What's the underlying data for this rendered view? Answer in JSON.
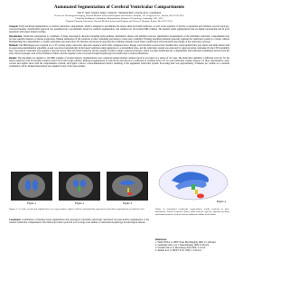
{
  "header": {
    "title": "Automated Segmentation of Cerebral Ventricular Compartments",
    "authors": "Wei Y. Yeh¹, Wenfei Jiang², Vamsi K. Yalamanchili¹, Charles R.G. Guttmann¹",
    "affiliations": [
      "¹Center for Neurological Imaging, Harvard Medical School and Brigham and Women's Hospital, 221 Longwood Ave., Boston, MA 02115 USA",
      "²Artificial Intelligence Laboratory, Massachusetts Institute of Technology, Cambridge, MA, USA",
      "³Surgical Planning Laboratory, Harvard Medical School and Brigham and Women's Hospital, Boston, MA 02115 USA"
    ]
  },
  "sections": [
    {
      "heading": "Synopsis:",
      "text": "Fully automated segmentation of cerebral ventricular compartments, which is designed to discriminate the lateral, third and fourth ventricles, as well as the aqueduct of Sylvius, is presented and validated. A novel topology-corrected intensity classification approach was assembled into a probabilistic model for ventricle segmentation, and validated on 124 normal MRI volumes. The method yields segmentations that are highly reproducible and in good agreement with expert manual tracings."
    },
    {
      "heading": "Introduction:",
      "text": "Ventricular enlargement is a hallmark of many neurological disorders including hydrocephalus, Alzheimer's disease and multiple sclerosis. Quantitative measurements of the individual ventricular compartments may provide sensitive markers of disease progression. Manual delineation of the ventricles is time consuming and subject to inter-rater variability. Existing automated methods generally segment the ventricular system as a whole, without distinguishing the compartments, or require substantial user interaction. We therefore developed an approach that combines intensity based tissue classification with anatomical knowledge of the ventricular topology."
    },
    {
      "heading": "Methods:",
      "text": "The MR images were acquired on a 1.5T scanner using a dual echo spin-echo sequence with 3 mm contiguous slices. Images were bias-field corrected and classified into cerebrospinal fluid, gray matter and white matter with an expectation-maximization algorithm. A seed was placed automatically in the lateral ventricles using registration to a probabilistic atlas, and the ventricular system was extracted by region growing constrained by the CSF probability map. Topological constraints were applied so that the lateral, third and fourth ventricles and the aqueduct formed a single connected structure, which was then subdivided into compartments with anatomical landmarks derived from the atlas. Narrow passages such as the foramina of Monro and the aqueduct were recovered through morphological reconstruction at reduced thresholds."
    },
    {
      "heading": "Results:",
      "text": "The algorithm was applied to 124 MRI volumes of normal subjects. Segmentations were compared against manual outlines traced by an expert on a subset of 20 cases. The mean Dice similarity coefficient was 0.91 for the lateral ventricles, 0.82 for the third ventricle and 0.79 for the fourth ventricle. Repeated segmentation of scan-rescan data showed a coefficient of variation below 2% for total ventricular volume. Figures 1-3 show representative axial, coronal and sagittal slices with the compartments overlaid, and Figure 4 shows a three-dimensional surface rendering of the segmented ventricular system. Processing time was approximately 4 minutes per volume on a standard workstation, and no manual intervention was required in any of the cases studied."
    }
  ],
  "figures": [
    {
      "label": "Figure 1",
      "caption": ""
    },
    {
      "label": "Figure 2",
      "caption": ""
    },
    {
      "label": "Figure 3",
      "caption": ""
    },
    {
      "label": "Figure 4",
      "caption": "Figure 4: Automated ventricular segmentation results rendered in three dimensions. Lateral ventricles (blue), third ventricle (green), aqueduct (yellow) and fourth ventricle (red) are shown within the outline of the brain."
    }
  ],
  "figure_caption": "Figures 1-3: Axial, coronal and sagittal slices of a representative subject with the automatically segmented ventricular compartments overlaid in color.",
  "conclusion": {
    "heading": "Conclusion:",
    "text": "Combination of intensity-based segmentation and topological constraints yields fully automated and reproducible segmentation of the cerebral ventricular compartments. The method provides a practical tool for large scale studies of ventricular morphology in neurological disease."
  },
  "references": {
    "heading": "References:",
    "items": [
      "1. Wells WM et al. IEEE Trans Med Imaging 1996; 15: 429-442.",
      "2. Guttmann CRG et al. J Neuroimaging 1999; 9: 96-102.",
      "3. Warfield SK et al. Med Image Anal 2000; 4: 43-55.",
      "4. Kikinis R et al. IEEE TVCG 1996; 2: 232-241."
    ]
  }
}
